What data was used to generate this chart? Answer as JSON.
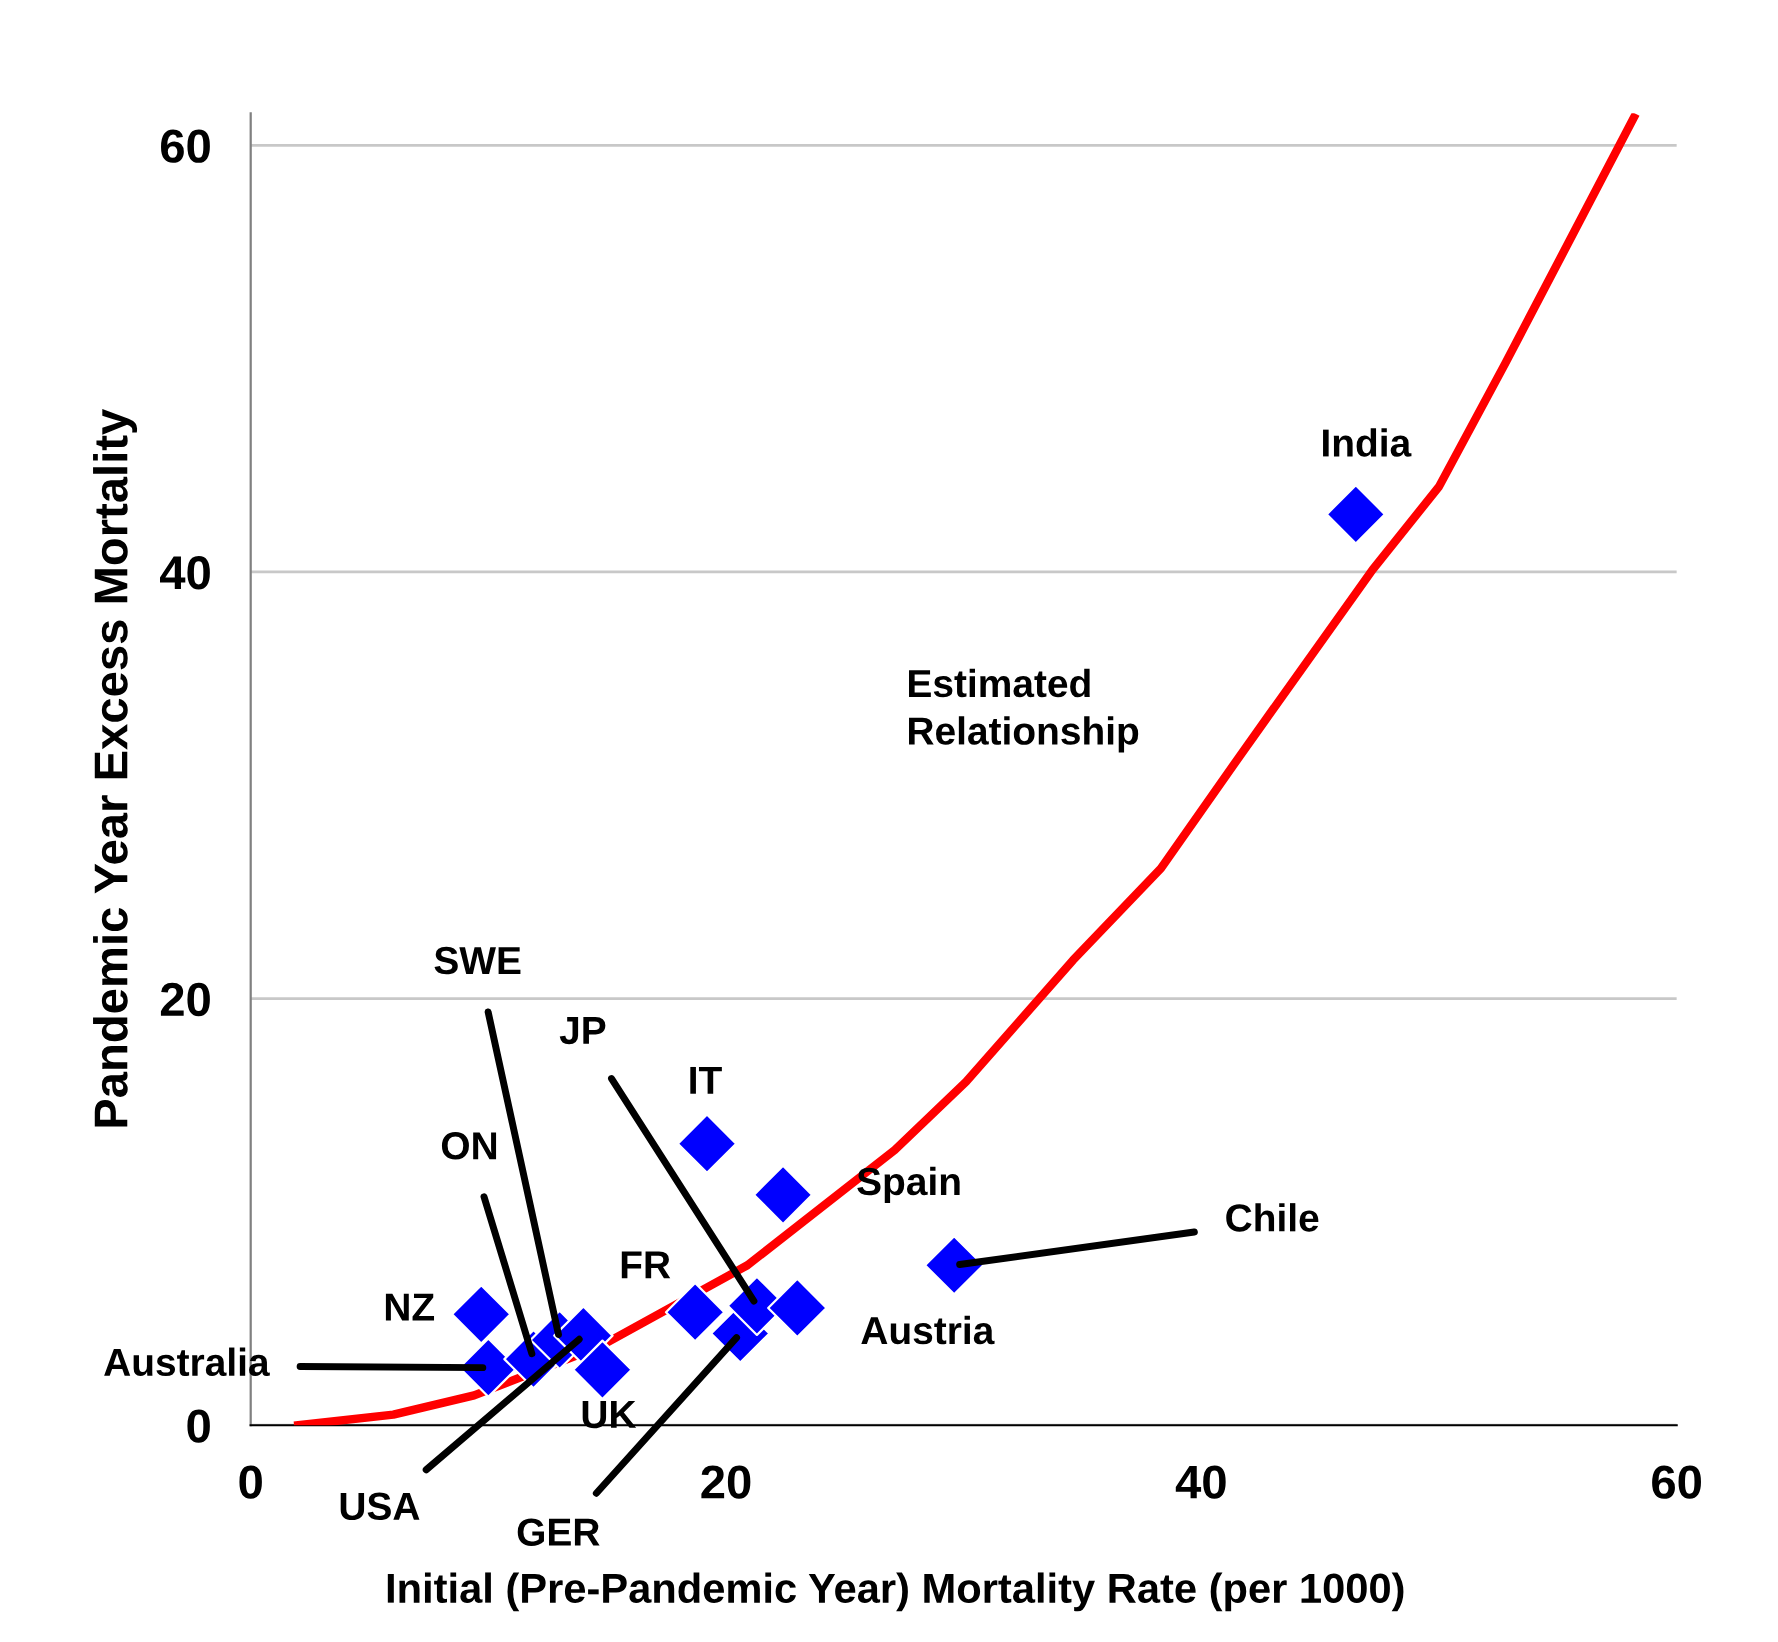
{
  "chart_data": {
    "type": "scatter",
    "xlabel": "Initial (Pre-Pandemic Year) Mortality Rate (per 1000)",
    "ylabel": "Pandemic Year Excess Mortality",
    "xlim": [
      0,
      60
    ],
    "xticks": [
      0,
      20,
      40,
      60
    ],
    "ylim": [
      0,
      61.5
    ],
    "yticks": [
      0,
      20,
      40,
      60
    ],
    "grid": "y",
    "marker": "diamond",
    "series": [
      {
        "color": "#0000ff",
        "x": [
          9.7,
          10.0,
          11.9,
          13.0,
          14.0,
          14.8,
          18.7,
          20.6,
          21.3,
          23.0,
          19.2,
          22.4,
          29.6,
          46.5
        ],
        "values": [
          5.2,
          2.7,
          3.1,
          4.0,
          4.2,
          2.6,
          5.3,
          4.3,
          5.6,
          5.5,
          13.2,
          10.8,
          7.5,
          42.7
        ]
      },
      {
        "type": "line",
        "name": "Estimated Relationship",
        "color": "#ff0000",
        "marker": "none",
        "x": [
          2.0,
          6.0,
          9.4,
          14.7,
          20.9,
          27.1,
          30.1,
          34.6,
          38.3,
          41.7,
          47.2,
          50.0,
          52.8,
          58.2
        ],
        "values": [
          0.0,
          0.5,
          1.4,
          3.7,
          7.5,
          12.9,
          16.1,
          21.8,
          26.1,
          31.5,
          40.1,
          44.0,
          49.8,
          61.3
        ]
      }
    ],
    "annotations": [
      {
        "text": "NZ",
        "x": 9.7,
        "y": 5.2
      },
      {
        "text": "Australia",
        "x": 10.0,
        "y": 2.7
      },
      {
        "text": "ON",
        "x": 11.9,
        "y": 3.1
      },
      {
        "text": "SWE",
        "x": 13.0,
        "y": 4.0
      },
      {
        "text": "USA",
        "x": 14.0,
        "y": 4.2
      },
      {
        "text": "UK",
        "x": 14.8,
        "y": 2.6
      },
      {
        "text": "FR",
        "x": 18.7,
        "y": 5.3
      },
      {
        "text": "GER",
        "x": 20.6,
        "y": 4.3
      },
      {
        "text": "JP",
        "x": 21.3,
        "y": 5.6
      },
      {
        "text": "Austria",
        "x": 23.0,
        "y": 5.5
      },
      {
        "text": "IT",
        "x": 19.2,
        "y": 13.2
      },
      {
        "text": "Spain",
        "x": 22.4,
        "y": 10.8
      },
      {
        "text": "Chile",
        "x": 29.6,
        "y": 7.5
      },
      {
        "text": "India",
        "x": 46.5,
        "y": 42.7
      }
    ]
  }
}
